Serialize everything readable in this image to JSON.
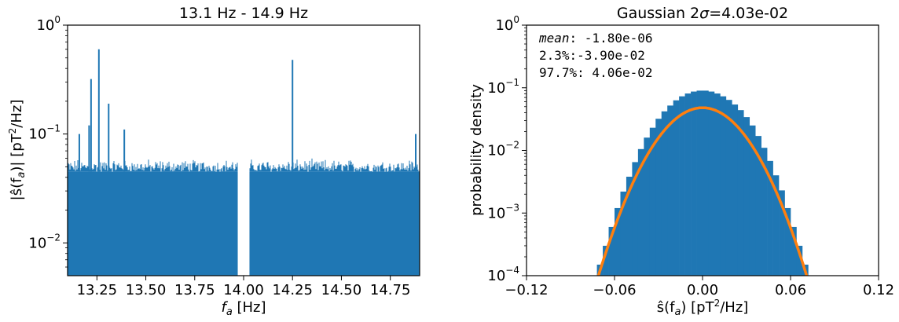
{
  "figure": {
    "left": {
      "title": "13.1 Hz - 14.9 Hz",
      "ylabel_main": "|ŝ(f",
      "ylabel_sub": "a",
      "ylabel_tail": ")| [pT",
      "ylabel_sup": "2",
      "ylabel_end": "/Hz]",
      "xlabel_main": "f",
      "xlabel_sub": "a",
      "xlabel_tail": " [Hz]"
    },
    "right": {
      "title_prefix": "Gaussian 2",
      "title_sigma": "σ",
      "title_suffix": "=4.03e-02",
      "ylabel": "probability density",
      "xlabel_main": "ŝ(f",
      "xlabel_sub": "a",
      "xlabel_tail": ") [pT",
      "xlabel_sup": "2",
      "xlabel_end": "/Hz]",
      "ann_mean_label": "mean",
      "ann_mean_value": ": -1.80e-06",
      "ann_p1": "2.3%:-3.90e-02",
      "ann_p2": "97.7%: 4.06e-02"
    }
  },
  "chart_data": [
    {
      "type": "bar",
      "title": "13.1 Hz - 14.9 Hz",
      "xlabel": "f_a [Hz]",
      "ylabel": "|ŝ(f_a)| [pT^2/Hz]",
      "xlim": [
        13.1,
        14.9
      ],
      "ylim": [
        0.005,
        1
      ],
      "yscale": "log",
      "color": "#1f77b4",
      "xticks": [
        13.25,
        13.5,
        13.75,
        14.0,
        14.25,
        14.5,
        14.75
      ],
      "xtick_labels": [
        "13.25",
        "13.50",
        "13.75",
        "14.00",
        "14.25",
        "14.50",
        "14.75"
      ],
      "yticks": [
        0.01,
        0.1,
        1
      ],
      "ytick_labels": [
        "10^-2",
        "10^-1",
        "10^0"
      ],
      "gap": [
        13.97,
        14.03
      ],
      "baseline_level": 0.045,
      "noise_top_level": 0.06,
      "peaks": [
        {
          "x": 13.16,
          "y": 0.1
        },
        {
          "x": 13.21,
          "y": 0.12
        },
        {
          "x": 13.22,
          "y": 0.32
        },
        {
          "x": 13.26,
          "y": 0.6
        },
        {
          "x": 13.31,
          "y": 0.19
        },
        {
          "x": 13.39,
          "y": 0.11
        },
        {
          "x": 14.25,
          "y": 0.48
        },
        {
          "x": 14.88,
          "y": 0.1
        }
      ]
    },
    {
      "type": "bar",
      "title": "Gaussian 2σ=4.03e-02",
      "xlabel": "ŝ(f_a) [pT^2/Hz]",
      "ylabel": "probability density",
      "xlim": [
        -0.12,
        0.12
      ],
      "ylim": [
        0.0001,
        1
      ],
      "yscale": "log",
      "xticks": [
        -0.12,
        -0.06,
        0.0,
        0.06,
        0.12
      ],
      "xtick_labels": [
        "−0.12",
        "−0.06",
        "0.00",
        "0.06",
        "0.12"
      ],
      "yticks": [
        0.0001,
        0.001,
        0.01,
        0.1,
        1
      ],
      "ytick_labels": [
        "10^-4",
        "10^-3",
        "10^-2",
        "10^-1",
        "10^0"
      ],
      "histogram": {
        "color": "#1f77b4",
        "bin_edges": [
          -0.072,
          -0.068,
          -0.064,
          -0.06,
          -0.056,
          -0.052,
          -0.048,
          -0.044,
          -0.04,
          -0.036,
          -0.032,
          -0.028,
          -0.024,
          -0.02,
          -0.016,
          -0.012,
          -0.008,
          -0.004,
          0.0,
          0.004,
          0.008,
          0.012,
          0.016,
          0.02,
          0.024,
          0.028,
          0.032,
          0.036,
          0.04,
          0.044,
          0.048,
          0.052,
          0.056,
          0.06,
          0.064,
          0.068,
          0.072,
          0.076
        ],
        "values": [
          0.00015,
          0.0003,
          0.0006,
          0.0012,
          0.0022,
          0.0038,
          0.0065,
          0.0105,
          0.016,
          0.023,
          0.032,
          0.042,
          0.052,
          0.063,
          0.073,
          0.081,
          0.087,
          0.09,
          0.09,
          0.087,
          0.081,
          0.073,
          0.064,
          0.054,
          0.044,
          0.034,
          0.025,
          0.017,
          0.011,
          0.0068,
          0.004,
          0.0023,
          0.0012,
          0.0006,
          0.0003,
          0.00015,
          0.0001
        ]
      },
      "fit": {
        "type": "gaussian",
        "color": "#ff7f0e",
        "mean": 0.0,
        "peak": 0.048,
        "sigma": 0.0202
      },
      "annotations": [
        "mean: -1.80e-06",
        "2.3%:-3.90e-02",
        "97.7%: 4.06e-02"
      ]
    }
  ]
}
